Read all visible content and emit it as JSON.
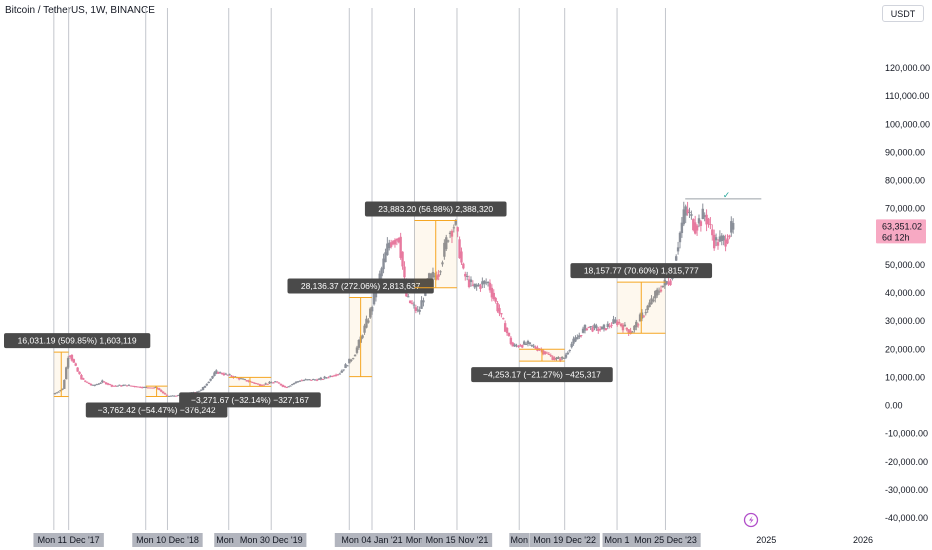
{
  "header": {
    "title": "Bitcoin / TetherUS, 1W, BINANCE",
    "currency": "USDT"
  },
  "price_tag": {
    "price": "63,351.02",
    "countdown": "6d 12h"
  },
  "colors": {
    "up": "#8a8f99",
    "down": "#e77a9f",
    "measure": "#f5a623",
    "label_bg": "#4a4a4a",
    "date_label_bg": "#b2b5be",
    "tag_bg": "#f7a9c3"
  },
  "chart_data": {
    "type": "candlestick",
    "title": "Bitcoin / TetherUS, 1W, BINANCE",
    "ylim": [
      -40000,
      130000
    ],
    "y_ticks": [
      "120,000.00",
      "110,000.00",
      "100,000.00",
      "90,000.00",
      "80,000.00",
      "70,000.00",
      "60,000.00",
      "50,000.00",
      "40,000.00",
      "30,000.00",
      "20,000.00",
      "10,000.00",
      "0.00",
      "-10,000.00",
      "-20,000.00",
      "-30,000.00",
      "-40,000.00"
    ],
    "x_ticks": [
      "2025",
      "2026"
    ],
    "x_range": [
      2017.65,
      2026.05
    ],
    "date_labels": [
      {
        "text": "Mon",
        "t": 2017.79
      },
      {
        "text": "Mon 11 Dec '17",
        "t": 2017.94
      },
      {
        "text": "Mon",
        "t": 2018.72
      },
      {
        "text": "Mon 10 Dec '18",
        "t": 2018.94
      },
      {
        "text": "Mon 1",
        "t": 2019.56
      },
      {
        "text": "Mon 30 Dec '19",
        "t": 2019.99
      },
      {
        "text": "Mon 2",
        "t": 2020.78
      },
      {
        "text": "Mon 04 Jan '21",
        "t": 2021.01
      },
      {
        "text": "Mon",
        "t": 2021.44
      },
      {
        "text": "Mon 15 Nov '21",
        "t": 2021.87
      },
      {
        "text": "Mon",
        "t": 2022.5
      },
      {
        "text": "Mon 19 Dec '22",
        "t": 2022.96
      },
      {
        "text": "Mon 1",
        "t": 2023.49
      },
      {
        "text": "Mon 25 Dec '23",
        "t": 2023.98
      }
    ],
    "series": [
      {
        "t": 2017.8,
        "v": 4000
      },
      {
        "t": 2017.9,
        "v": 6000
      },
      {
        "t": 2017.96,
        "v": 19000
      },
      {
        "t": 2018.05,
        "v": 12000
      },
      {
        "t": 2018.1,
        "v": 9000
      },
      {
        "t": 2018.2,
        "v": 7000
      },
      {
        "t": 2018.3,
        "v": 8500
      },
      {
        "t": 2018.4,
        "v": 7000
      },
      {
        "t": 2018.55,
        "v": 7200
      },
      {
        "t": 2018.7,
        "v": 6500
      },
      {
        "t": 2018.85,
        "v": 6300
      },
      {
        "t": 2018.95,
        "v": 3400
      },
      {
        "t": 2019.1,
        "v": 3600
      },
      {
        "t": 2019.3,
        "v": 5500
      },
      {
        "t": 2019.45,
        "v": 12000
      },
      {
        "t": 2019.55,
        "v": 11000
      },
      {
        "t": 2019.7,
        "v": 9500
      },
      {
        "t": 2019.9,
        "v": 7300
      },
      {
        "t": 2020.05,
        "v": 8500
      },
      {
        "t": 2020.15,
        "v": 6500
      },
      {
        "t": 2020.3,
        "v": 9000
      },
      {
        "t": 2020.5,
        "v": 9300
      },
      {
        "t": 2020.7,
        "v": 11500
      },
      {
        "t": 2020.85,
        "v": 18000
      },
      {
        "t": 2021.0,
        "v": 32000
      },
      {
        "t": 2021.1,
        "v": 45000
      },
      {
        "t": 2021.2,
        "v": 58000
      },
      {
        "t": 2021.3,
        "v": 60000
      },
      {
        "t": 2021.38,
        "v": 38000
      },
      {
        "t": 2021.5,
        "v": 33000
      },
      {
        "t": 2021.6,
        "v": 45000
      },
      {
        "t": 2021.7,
        "v": 47000
      },
      {
        "t": 2021.8,
        "v": 61000
      },
      {
        "t": 2021.87,
        "v": 65000
      },
      {
        "t": 2021.95,
        "v": 47000
      },
      {
        "t": 2022.05,
        "v": 42000
      },
      {
        "t": 2022.2,
        "v": 44000
      },
      {
        "t": 2022.35,
        "v": 30000
      },
      {
        "t": 2022.45,
        "v": 21000
      },
      {
        "t": 2022.6,
        "v": 22000
      },
      {
        "t": 2022.75,
        "v": 19500
      },
      {
        "t": 2022.88,
        "v": 16500
      },
      {
        "t": 2022.97,
        "v": 16800
      },
      {
        "t": 2023.05,
        "v": 22000
      },
      {
        "t": 2023.2,
        "v": 28000
      },
      {
        "t": 2023.35,
        "v": 27000
      },
      {
        "t": 2023.5,
        "v": 30000
      },
      {
        "t": 2023.65,
        "v": 26000
      },
      {
        "t": 2023.8,
        "v": 34000
      },
      {
        "t": 2023.95,
        "v": 42000
      },
      {
        "t": 2024.05,
        "v": 45000
      },
      {
        "t": 2024.15,
        "v": 62000
      },
      {
        "t": 2024.2,
        "v": 70000
      },
      {
        "t": 2024.3,
        "v": 64000
      },
      {
        "t": 2024.4,
        "v": 68000
      },
      {
        "t": 2024.5,
        "v": 58000
      },
      {
        "t": 2024.6,
        "v": 59000
      },
      {
        "t": 2024.68,
        "v": 63351
      }
    ],
    "measurements": [
      {
        "t0": 2017.79,
        "t1": 2017.94,
        "v0": 3200,
        "v1": 19000,
        "label": "16,031.19 (509.85%) 1,603,119",
        "label_pos": "above"
      },
      {
        "t0": 2018.72,
        "t1": 2018.94,
        "v0": 6900,
        "v1": 3200,
        "label": "−3,762.42 (−54.47%) −376,242",
        "label_pos": "below"
      },
      {
        "t0": 2019.56,
        "t1": 2019.99,
        "v0": 10000,
        "v1": 6800,
        "label": "−3,271.67 (−32.14%) −327,167",
        "label_pos": "below"
      },
      {
        "t0": 2020.78,
        "t1": 2021.01,
        "v0": 10300,
        "v1": 38400,
        "label": "28,136.37 (272.06%) 2,813,637",
        "label_pos": "above"
      },
      {
        "t0": 2021.44,
        "t1": 2021.87,
        "v0": 41900,
        "v1": 65800,
        "label": "23,883.20 (56.98%) 2,388,320",
        "label_pos": "above"
      },
      {
        "t0": 2022.5,
        "t1": 2022.96,
        "v0": 20000,
        "v1": 15800,
        "label": "−4,253.17 (−21.27%) −425,317",
        "label_pos": "below"
      },
      {
        "t0": 2023.49,
        "t1": 2023.98,
        "v0": 25700,
        "v1": 43900,
        "label": "18,157.77 (70.60%) 1,815,777",
        "label_pos": "above"
      }
    ]
  }
}
